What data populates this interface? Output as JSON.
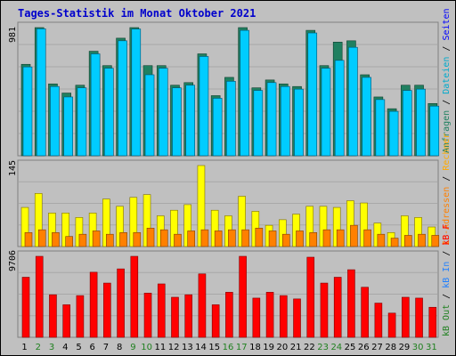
{
  "title": "Tages-Statistik im Monat Oktober 2021",
  "colors": {
    "background": "#C0C0C0",
    "title": "#0000CC",
    "anfragen": "#208060",
    "dateien": "#00CCFF",
    "seiten": "#0000FF",
    "rechner": "#FFFF00",
    "ip_adressen": "#FF8000",
    "kb_out": "#FF8000",
    "kb_in": "#FF0000",
    "weekend_label": "#208020",
    "weekday_label": "#000000"
  },
  "right_legend": {
    "top": [
      {
        "text": "Anfragen",
        "color": "#208060"
      },
      {
        "text": " / ",
        "color": "#000000"
      },
      {
        "text": "Dateien",
        "color": "#00AACC"
      },
      {
        "text": " / ",
        "color": "#000000"
      },
      {
        "text": "Seiten",
        "color": "#0000FF"
      }
    ],
    "middle": [
      {
        "text": "IP-Adressen",
        "color": "#FF8000"
      },
      {
        "text": " / ",
        "color": "#000000"
      },
      {
        "text": "Rechner",
        "color": "#FFAA00"
      }
    ],
    "bottom": [
      {
        "text": "kB Out",
        "color": "#208020"
      },
      {
        "text": " / ",
        "color": "#000000"
      },
      {
        "text": "kB In",
        "color": "#2080FF"
      },
      {
        "text": " / ",
        "color": "#000000"
      },
      {
        "text": "kB F",
        "color": "#FF0000"
      }
    ]
  },
  "chart_data": {
    "type": "bar",
    "title": "Tages-Statistik im Monat Oktober 2021",
    "categories": [
      "1",
      "2",
      "3",
      "4",
      "5",
      "6",
      "7",
      "8",
      "9",
      "10",
      "11",
      "12",
      "13",
      "14",
      "15",
      "16",
      "17",
      "18",
      "19",
      "20",
      "21",
      "22",
      "23",
      "24",
      "25",
      "26",
      "27",
      "28",
      "29",
      "30",
      "31"
    ],
    "weekend_days": [
      "2",
      "3",
      "9",
      "10",
      "16",
      "17",
      "23",
      "24",
      "30",
      "31"
    ],
    "panels": [
      {
        "name": "top",
        "max_label": "981",
        "ylim": [
          0,
          981
        ],
        "series": [
          {
            "name": "Anfragen",
            "values": [
              700,
              981,
              550,
              480,
              540,
              800,
              690,
              900,
              981,
              690,
              690,
              540,
              560,
              780,
              460,
              600,
              981,
              520,
              580,
              550,
              530,
              960,
              690,
              870,
              880,
              620,
              450,
              360,
              540,
              540,
              400
            ]
          },
          {
            "name": "Dateien",
            "values": [
              680,
              972,
              530,
              450,
              520,
              780,
              670,
              880,
              970,
              620,
              670,
              520,
              540,
              760,
              440,
              570,
              960,
              500,
              560,
              530,
              510,
              940,
              670,
              730,
              830,
              600,
              430,
              340,
              500,
              510,
              380
            ]
          },
          {
            "name": "Seiten",
            "values": [
              0,
              0,
              0,
              0,
              0,
              0,
              0,
              0,
              0,
              0,
              0,
              0,
              0,
              0,
              0,
              0,
              0,
              0,
              0,
              0,
              0,
              0,
              0,
              0,
              0,
              0,
              0,
              0,
              0,
              0,
              0
            ]
          }
        ]
      },
      {
        "name": "middle",
        "max_label": "145",
        "ylim": [
          0,
          145
        ],
        "series": [
          {
            "name": "Rechner",
            "values": [
              70,
              95,
              60,
              60,
              52,
              60,
              85,
              72,
              88,
              93,
              55,
              65,
              75,
              145,
              65,
              55,
              90,
              63,
              38,
              48,
              58,
              72,
              72,
              70,
              82,
              78,
              42,
              25,
              55,
              52,
              35
            ]
          },
          {
            "name": "IP-Adressen",
            "values": [
              25,
              30,
              25,
              18,
              22,
              28,
              22,
              25,
              25,
              33,
              30,
              22,
              28,
              30,
              28,
              30,
              30,
              33,
              28,
              22,
              28,
              25,
              30,
              30,
              38,
              30,
              22,
              15,
              20,
              22,
              20
            ]
          }
        ]
      },
      {
        "name": "bottom",
        "max_label": "9706",
        "ylim": [
          0,
          9706
        ],
        "series": [
          {
            "name": "kB F",
            "values": [
              7200,
              9706,
              5100,
              3900,
              5000,
              7800,
              6500,
              8200,
              9706,
              5300,
              6400,
              4800,
              5100,
              7600,
              3900,
              5400,
              9706,
              4700,
              5400,
              5000,
              4600,
              9600,
              6500,
              7200,
              8100,
              6000,
              4100,
              2900,
              4800,
              4700,
              3600
            ]
          },
          {
            "name": "kB In",
            "values": [
              0,
              0,
              0,
              0,
              0,
              0,
              0,
              0,
              0,
              0,
              0,
              0,
              0,
              0,
              0,
              0,
              0,
              0,
              0,
              0,
              0,
              0,
              0,
              0,
              0,
              0,
              0,
              0,
              0,
              0,
              0
            ]
          },
          {
            "name": "kB Out",
            "values": [
              0,
              0,
              0,
              0,
              0,
              0,
              0,
              0,
              0,
              0,
              0,
              0,
              0,
              0,
              0,
              0,
              0,
              0,
              0,
              0,
              0,
              0,
              0,
              0,
              0,
              0,
              0,
              0,
              0,
              0,
              0
            ]
          }
        ]
      }
    ]
  }
}
